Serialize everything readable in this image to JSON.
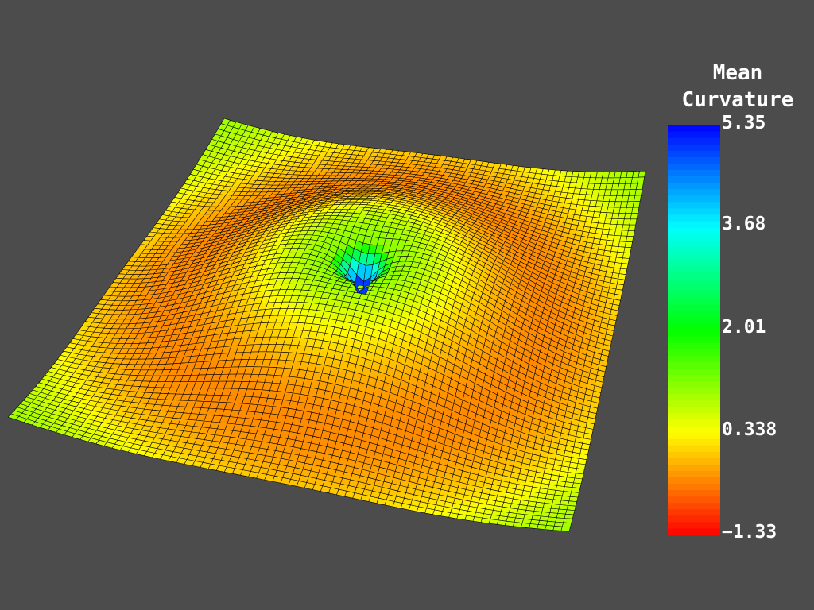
{
  "scene": {
    "background": "#4c4c4c",
    "mesh_line_color": "#000000",
    "surface_description_icon": "wavy-surface-mesh"
  },
  "colorbar": {
    "title_line1": "Mean",
    "title_line2": "Curvature",
    "max": 5.35,
    "min": -1.33,
    "colormap": [
      "#ff0000",
      "#ffff00",
      "#00ff00",
      "#00ffff",
      "#0000ff"
    ],
    "ticks": [
      {
        "label": "5.35",
        "value": 5.35
      },
      {
        "label": "3.68",
        "value": 3.68
      },
      {
        "label": "2.01",
        "value": 2.01
      },
      {
        "label": "0.338",
        "value": 0.338
      },
      {
        "label": "−1.33",
        "value": -1.33
      }
    ]
  }
}
